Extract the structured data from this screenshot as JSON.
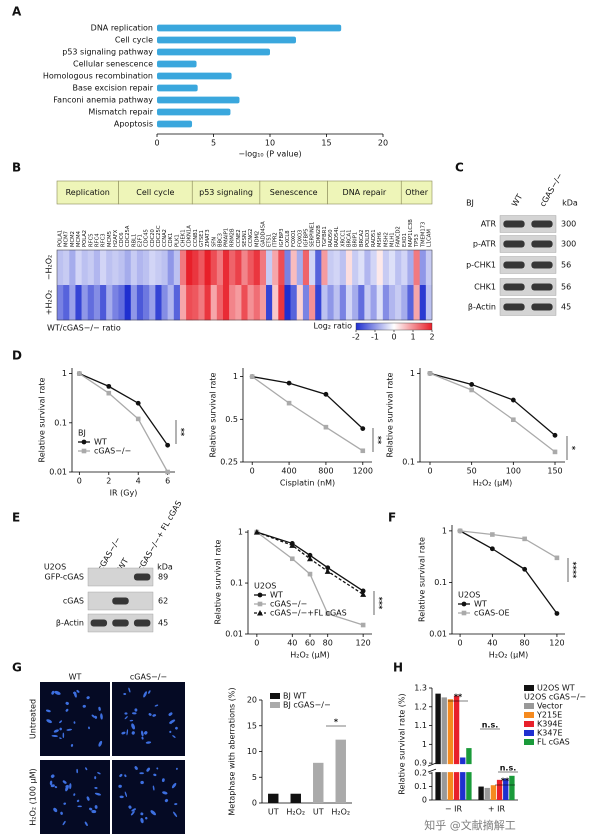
{
  "chart_data": [
    {
      "panel": "A",
      "type": "hbar",
      "categories": [
        "DNA replication",
        "Cell cycle",
        "p53 signaling pathway",
        "Cellular senescence",
        "Homologous recombination",
        "Base excision repair",
        "Fanconi anemia pathway",
        "Mismatch repair",
        "Apoptosis"
      ],
      "values": [
        16.3,
        12.3,
        10.0,
        3.5,
        6.6,
        3.6,
        7.3,
        6.5,
        3.1
      ],
      "color": "#3aa7dd",
      "xlim": [
        0,
        20
      ],
      "xticks": [
        0,
        5,
        10,
        15,
        20
      ],
      "x_label": "−log₁₀ (P value)"
    },
    {
      "panel": "B",
      "type": "heatmap",
      "groups": [
        {
          "name": "Replication",
          "genes": [
            "POLA1",
            "MCM7",
            "MCM2",
            "MCM4",
            "POLA2",
            "RFC5",
            "RFC4",
            "RFC3",
            "MCM5",
            "H2AFX"
          ]
        },
        {
          "name": "Cell cycle",
          "genes": [
            "CDC6",
            "CDC25A",
            "RBL1",
            "E2F1",
            "CDC45",
            "CDC20",
            "CDC25C",
            "CCNA2",
            "CDK1",
            "PLK1",
            "CHEK1",
            "CDKN1A"
          ]
        },
        {
          "name": "p53 signaling",
          "genes": [
            "CCNB1",
            "GTSE1",
            "ZMAT3",
            "SFN",
            "BBC3",
            "PMAIP1",
            "RRM2B",
            "CCNE2",
            "SESN1",
            "CCNG2",
            "MDM2"
          ]
        },
        {
          "name": "Senescence",
          "genes": [
            "GADD45A",
            "ETS1",
            "ITPR2",
            "IGFBP3",
            "CXCL8",
            "FOXO1",
            "FOXO3",
            "IGFBP5",
            "SERPINE1",
            "CDKN2B",
            "TGFBR1"
          ]
        },
        {
          "name": "DNA repair",
          "genes": [
            "RAD50",
            "RAD54L",
            "XRCC1",
            "BRCA1",
            "BRIP1",
            "BRCA2",
            "POLD3",
            "RAD51",
            "MSH6",
            "MSH2",
            "MLH1",
            "FANCD2"
          ]
        },
        {
          "name": "Other",
          "genes": [
            "EXO1",
            "MAP1LC3B",
            "TP53",
            "TMEM173",
            "L1CAM"
          ]
        }
      ],
      "rows": [
        "−H₂O₂",
        "+H₂O₂"
      ],
      "values": [
        [
          -0.6,
          -0.5,
          -0.8,
          -0.4,
          -0.6,
          -0.5,
          -0.7,
          -0.4,
          -0.6,
          -0.5,
          -0.6,
          -0.8,
          -0.5,
          -0.7,
          -0.6,
          -0.4,
          -0.5,
          -0.6,
          -1.0,
          -0.6,
          1.2,
          2.0,
          1.8,
          1.5,
          2.0,
          1.6,
          1.2,
          1.9,
          1.4,
          1.7,
          1.1,
          1.5,
          1.8,
          1.2,
          -0.5,
          0.8,
          1.6,
          -1.2,
          0.6,
          -0.8,
          1.4,
          -0.4,
          -1.5,
          0.9,
          -0.5,
          -0.4,
          -0.6,
          0.3,
          -0.5,
          -0.3,
          -0.7,
          -0.4,
          0.2,
          -0.5,
          -0.3,
          -0.6,
          -0.4,
          -0.8,
          1.2,
          -1.0,
          -0.5
        ],
        [
          -1.2,
          -1.5,
          -0.9,
          -1.8,
          -1.0,
          -1.4,
          -1.1,
          -1.6,
          -0.8,
          -1.2,
          -1.4,
          -2.0,
          -1.0,
          -1.6,
          -1.3,
          -0.9,
          -1.8,
          -1.1,
          -0.7,
          -1.5,
          0.8,
          1.6,
          1.5,
          1.2,
          1.8,
          0.8,
          1.4,
          1.9,
          1.1,
          0.9,
          1.6,
          1.0,
          1.3,
          0.9,
          -1.8,
          0.5,
          1.8,
          -2.0,
          -1.5,
          0.4,
          -1.2,
          1.0,
          -1.8,
          -0.6,
          -1.0,
          -0.6,
          -1.2,
          -0.4,
          -0.8,
          -1.4,
          -0.5,
          -0.9,
          -0.3,
          -1.1,
          -0.7,
          -0.5,
          -0.8,
          -1.5,
          0.8,
          -1.9,
          -0.6
        ]
      ],
      "colors": [
        "#1f2fd0",
        "#ffffff",
        "#e8202a"
      ],
      "header_color": "#eef5b8",
      "colorbar": {
        "lim": [
          -2,
          2
        ],
        "ticks": [
          -2,
          -1,
          0,
          1,
          2
        ],
        "label": "Log₂ ratio"
      },
      "note": "WT/cGAS−/− ratio"
    },
    {
      "panel": "D",
      "type": "line",
      "log_y": true,
      "x": [
        0,
        2,
        4,
        6
      ],
      "xlim": [
        -0.5,
        6.5
      ],
      "xticks": [
        0,
        2,
        4,
        6
      ],
      "ylim": [
        0.01,
        1.3
      ],
      "yticks": [
        0.01,
        0.1,
        1
      ],
      "x_label": "IR (Gy)",
      "y_label": "Relative survival rate",
      "series": [
        {
          "name": "WT",
          "color": "#111111",
          "marker": "circle",
          "values": [
            1,
            0.55,
            0.25,
            0.035
          ]
        },
        {
          "name": "cGAS−/−",
          "color": "#aaaaaa",
          "marker": "square",
          "values": [
            1,
            0.4,
            0.12,
            0.01
          ]
        }
      ],
      "legend": {
        "title": "BJ",
        "corner": "lower left"
      },
      "annotations": [
        "**"
      ]
    },
    {
      "type": "line",
      "log_y": true,
      "x": [
        0,
        400,
        800,
        1200
      ],
      "xlim": [
        -100,
        1300
      ],
      "xticks": [
        0,
        400,
        800,
        1200
      ],
      "ylim": [
        0.25,
        1.15
      ],
      "yticks": [
        0.25,
        0.5,
        1
      ],
      "x_label": "Cisplatin (nM)",
      "y_label": "Relative survival rate",
      "series": [
        {
          "color": "#111111",
          "marker": "circle",
          "values": [
            1,
            0.9,
            0.75,
            0.43
          ]
        },
        {
          "color": "#aaaaaa",
          "marker": "square",
          "values": [
            1,
            0.65,
            0.44,
            0.3
          ]
        }
      ],
      "annotations": [
        "**"
      ]
    },
    {
      "type": "line",
      "log_y": true,
      "x": [
        0,
        50,
        100,
        150
      ],
      "xlim": [
        -12,
        162
      ],
      "xticks": [
        0,
        50,
        100,
        150
      ],
      "ylim": [
        0.1,
        1.15
      ],
      "yticks": [
        0.1,
        1
      ],
      "x_label": "H₂O₂ (μM)",
      "y_label": "Relative survival rate",
      "series": [
        {
          "color": "#111111",
          "marker": "circle",
          "values": [
            1,
            0.75,
            0.5,
            0.2
          ]
        },
        {
          "color": "#aaaaaa",
          "marker": "square",
          "values": [
            1,
            0.65,
            0.3,
            0.13
          ]
        }
      ],
      "annotations": [
        "*"
      ]
    },
    {
      "type": "line",
      "log_y": true,
      "x": [
        0,
        40,
        60,
        80,
        120
      ],
      "xlim": [
        -10,
        130
      ],
      "xticks": [
        0,
        40,
        60,
        80,
        120
      ],
      "ylim": [
        0.01,
        1.1
      ],
      "yticks": [
        0.01,
        0.1,
        1
      ],
      "x_label": "H₂O₂ (μM)",
      "y_label": "Relative survival rate",
      "series": [
        {
          "name": "WT",
          "color": "#111111",
          "marker": "circle",
          "values": [
            1,
            0.6,
            0.35,
            0.2,
            0.07
          ]
        },
        {
          "name": "cGAS−/−",
          "color": "#aaaaaa",
          "marker": "square",
          "values": [
            1,
            0.3,
            0.15,
            0.025,
            0.015
          ]
        },
        {
          "name": "cGAS−/−+FL cGAS",
          "color": "#111111",
          "marker": "triangle",
          "dash": true,
          "values": [
            1,
            0.55,
            0.3,
            0.17,
            0.06
          ]
        }
      ],
      "legend": {
        "title": "U2OS",
        "corner": "lower left"
      },
      "annotations": [
        "***"
      ]
    },
    {
      "panel": "F",
      "type": "line",
      "log_y": true,
      "x": [
        0,
        40,
        80,
        120
      ],
      "xlim": [
        -10,
        130
      ],
      "xticks": [
        0,
        40,
        80,
        120
      ],
      "ylim": [
        0.01,
        1.3
      ],
      "yticks": [
        0.01,
        0.1,
        1
      ],
      "x_label": "H₂O₂ (μM)",
      "y_label": "Relative survival rate",
      "series": [
        {
          "name": "WT",
          "color": "#111111",
          "marker": "circle",
          "values": [
            1,
            0.45,
            0.18,
            0.025
          ]
        },
        {
          "name": "cGAS-OE",
          "color": "#aaaaaa",
          "marker": "square",
          "values": [
            1,
            0.85,
            0.7,
            0.3
          ]
        }
      ],
      "legend": {
        "title": "U2OS",
        "corner": "lower left"
      },
      "annotations": [
        "****"
      ]
    },
    {
      "type": "bar",
      "categories": [
        "UT",
        "H₂O₂",
        "UT",
        "H₂O₂"
      ],
      "ylim": [
        0,
        20
      ],
      "yticks": [
        0,
        5,
        10,
        15,
        20
      ],
      "y_label": "Metaphase with aberrations (%)",
      "series": [
        {
          "name": "BJ WT",
          "color": "#111111",
          "values": [
            1.8,
            1.8,
            null,
            null
          ]
        },
        {
          "name": "BJ cGAS−/−",
          "color": "#aaaaaa",
          "values": [
            null,
            null,
            7.8,
            12.3
          ]
        }
      ],
      "legend": {
        "corner": "upper left"
      },
      "annotations": [
        "*"
      ]
    },
    {
      "panel": "H",
      "type": "bar",
      "categories": [
        "− IR",
        "+ IR"
      ],
      "ylim": [
        0,
        1.3
      ],
      "break": [
        0.2,
        0.9
      ],
      "yticks": [
        0,
        0.1,
        0.2,
        0.9,
        1,
        1.1,
        1.2,
        1.3
      ],
      "y_label": "Relative survival rate (%)",
      "series": [
        {
          "name": "U2OS WT",
          "color": "#111111",
          "values": [
            1.27,
            0.1
          ]
        },
        {
          "name": "Vector",
          "color": "#999999",
          "values": [
            1.25,
            0.09
          ]
        },
        {
          "name": "Y215E",
          "color": "#f58a1f",
          "values": [
            1.24,
            0.11
          ]
        },
        {
          "name": "K394E",
          "color": "#e8202a",
          "values": [
            1.26,
            0.15
          ]
        },
        {
          "name": "K347E",
          "color": "#1f2fd0",
          "values": [
            0.93,
            0.16
          ]
        },
        {
          "name": "FL cGAS",
          "color": "#1a9a3a",
          "values": [
            0.98,
            0.18
          ]
        }
      ],
      "legend": {
        "corner": "outside right",
        "subtitle": "U2OS cGAS−/−"
      },
      "annotations": [
        "**",
        "n.s.",
        "**",
        "n.s."
      ]
    }
  ],
  "blots": [
    {
      "panel": "C",
      "cell_line": "BJ",
      "lanes": [
        "WT",
        "cGAS−/−"
      ],
      "unit": "kDa",
      "rows": [
        {
          "label": "ATR",
          "kda": 300
        },
        {
          "label": "p-ATR",
          "kda": 300
        },
        {
          "label": "p-CHK1",
          "kda": 56
        },
        {
          "label": "CHK1",
          "kda": 56
        },
        {
          "label": "β-Actin",
          "kda": 45
        }
      ]
    },
    {
      "panel": "E",
      "cell_line": "U2OS",
      "lanes": [
        "cGAS−/−",
        "WT",
        "cGAS−/−+ FL cGAS"
      ],
      "unit": "kDa",
      "rows": [
        {
          "label": "GFP-cGAS",
          "kda": 89
        },
        {
          "label": "cGAS",
          "kda": 62
        },
        {
          "label": "β-Actin",
          "kda": 45
        }
      ]
    }
  ],
  "images": {
    "panel": "G",
    "columns": [
      "WT",
      "cGAS−/−"
    ],
    "rows": [
      "Untreated",
      "H₂O₂ (100 μM)"
    ]
  },
  "watermark": "知乎 @文献摘解工"
}
